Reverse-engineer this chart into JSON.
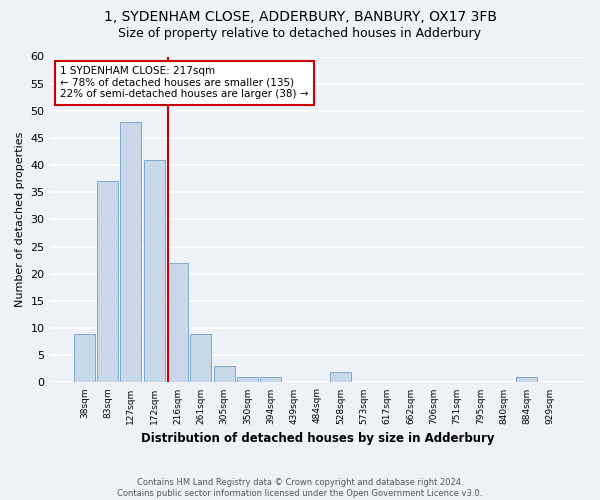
{
  "title_line1": "1, SYDENHAM CLOSE, ADDERBURY, BANBURY, OX17 3FB",
  "title_line2": "Size of property relative to detached houses in Adderbury",
  "xlabel": "Distribution of detached houses by size in Adderbury",
  "ylabel": "Number of detached properties",
  "bar_labels": [
    "38sqm",
    "83sqm",
    "127sqm",
    "172sqm",
    "216sqm",
    "261sqm",
    "305sqm",
    "350sqm",
    "394sqm",
    "439sqm",
    "484sqm",
    "528sqm",
    "573sqm",
    "617sqm",
    "662sqm",
    "706sqm",
    "751sqm",
    "795sqm",
    "840sqm",
    "884sqm",
    "929sqm"
  ],
  "bar_values": [
    9,
    37,
    48,
    41,
    22,
    9,
    3,
    1,
    1,
    0,
    0,
    2,
    0,
    0,
    0,
    0,
    0,
    0,
    0,
    1,
    0
  ],
  "bar_color": "#c8d8e8",
  "bar_edgecolor": "#7aabcf",
  "vline_color": "#cc0000",
  "annotation_title": "1 SYDENHAM CLOSE: 217sqm",
  "annotation_line1": "← 78% of detached houses are smaller (135)",
  "annotation_line2": "22% of semi-detached houses are larger (38) →",
  "annotation_box_color": "#ffffff",
  "annotation_box_edgecolor": "#cc0000",
  "ylim": [
    0,
    60
  ],
  "yticks": [
    0,
    5,
    10,
    15,
    20,
    25,
    30,
    35,
    40,
    45,
    50,
    55,
    60
  ],
  "footnote": "Contains HM Land Registry data © Crown copyright and database right 2024.\nContains public sector information licensed under the Open Government Licence v3.0.",
  "bg_color": "#eef2f7",
  "grid_color": "#ffffff",
  "title_fontsize": 10,
  "subtitle_fontsize": 9
}
